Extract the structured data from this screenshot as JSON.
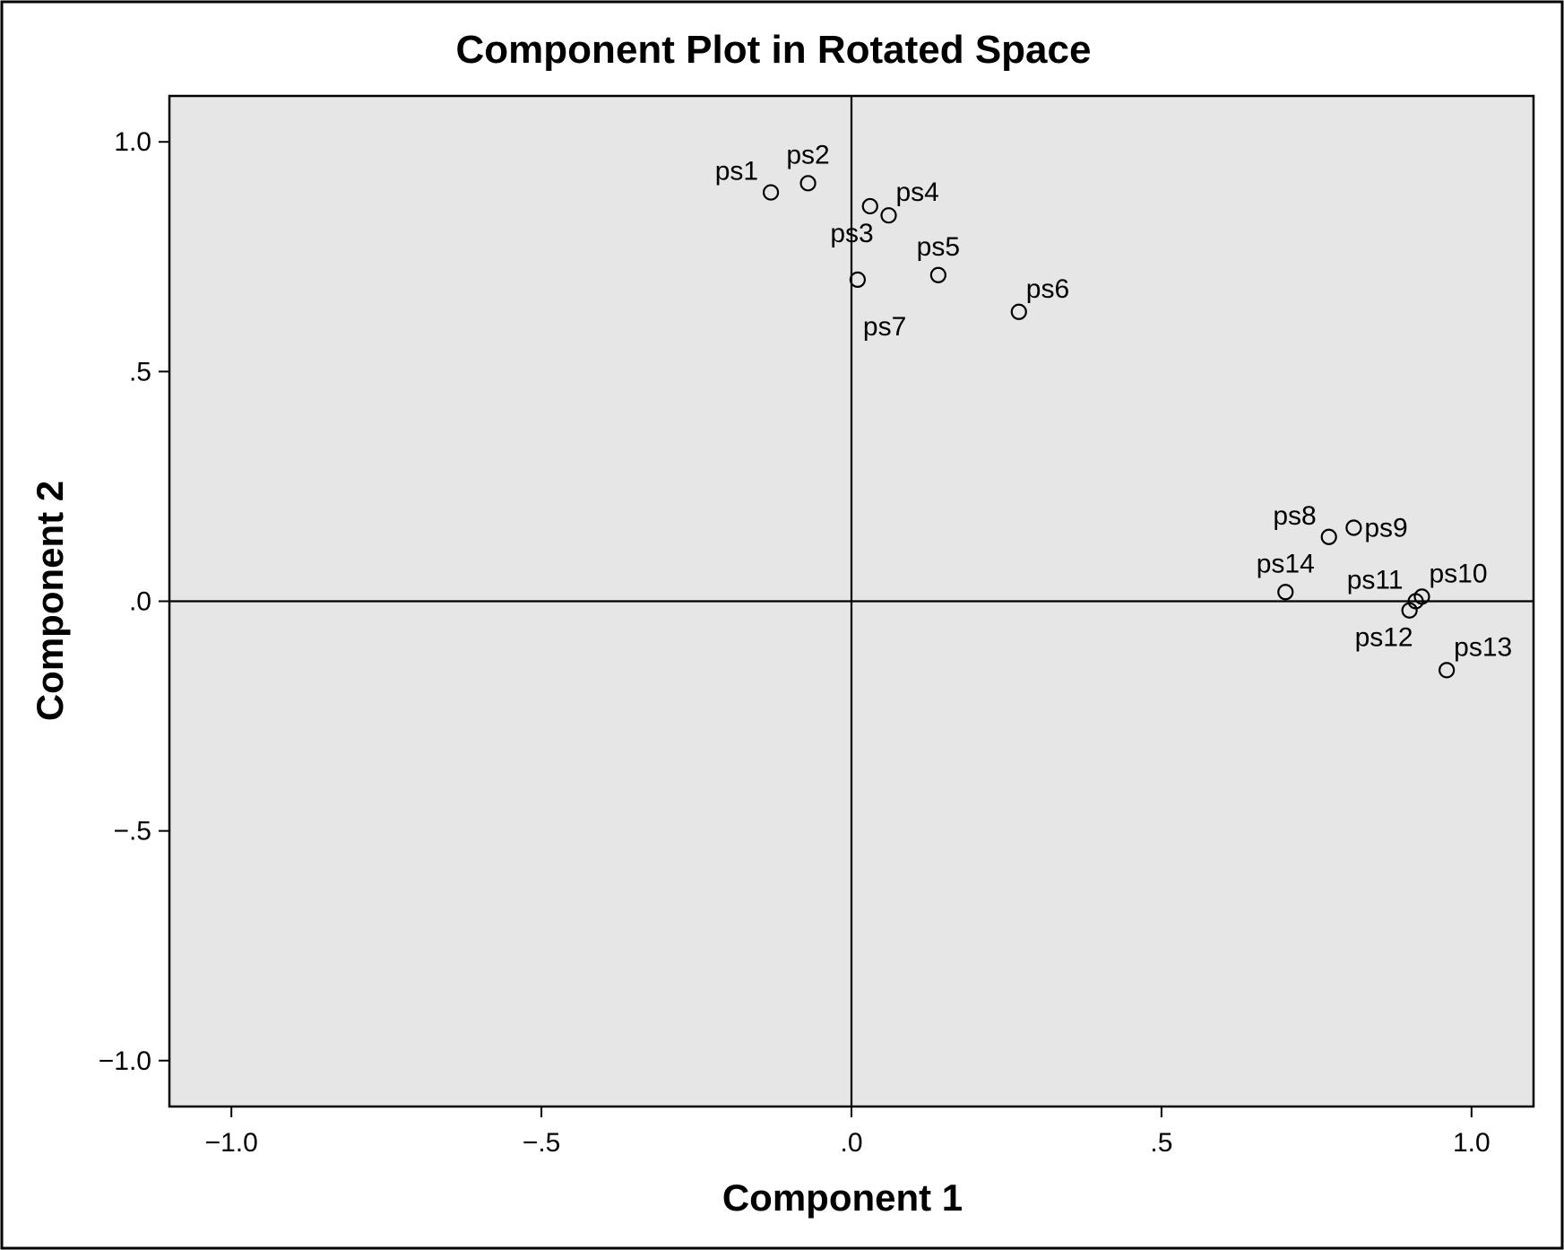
{
  "chart_data": {
    "type": "scatter",
    "title": "Component Plot in Rotated Space",
    "xlabel": "Component 1",
    "ylabel": "Component 2",
    "xlim": [
      -1.1,
      1.1
    ],
    "ylim": [
      -1.1,
      1.1
    ],
    "grid": false,
    "x_ticks": [
      {
        "value": -1.0,
        "label": "−1.0"
      },
      {
        "value": -0.5,
        "label": "−.5"
      },
      {
        "value": 0.0,
        "label": ".0"
      },
      {
        "value": 0.5,
        "label": ".5"
      },
      {
        "value": 1.0,
        "label": "1.0"
      }
    ],
    "y_ticks": [
      {
        "value": 1.0,
        "label": "1.0"
      },
      {
        "value": 0.5,
        "label": ".5"
      },
      {
        "value": 0.0,
        "label": ".0"
      },
      {
        "value": -0.5,
        "label": "−.5"
      },
      {
        "value": -1.0,
        "label": "−1.0"
      }
    ],
    "reference_lines": {
      "x": 0.0,
      "y": 0.0
    },
    "points": [
      {
        "label": "ps1",
        "x": -0.13,
        "y": 0.89,
        "label_pos": "upper-left"
      },
      {
        "label": "ps2",
        "x": -0.07,
        "y": 0.91,
        "label_pos": "above"
      },
      {
        "label": "ps3",
        "x": 0.03,
        "y": 0.86,
        "label_pos": "lower-left"
      },
      {
        "label": "ps4",
        "x": 0.06,
        "y": 0.84,
        "label_pos": "upper-right"
      },
      {
        "label": "ps5",
        "x": 0.14,
        "y": 0.71,
        "label_pos": "above"
      },
      {
        "label": "ps6",
        "x": 0.27,
        "y": 0.63,
        "label_pos": "upper-right"
      },
      {
        "label": "ps7",
        "x": 0.01,
        "y": 0.7,
        "label_pos": "below"
      },
      {
        "label": "ps8",
        "x": 0.77,
        "y": 0.14,
        "label_pos": "upper-left"
      },
      {
        "label": "ps9",
        "x": 0.81,
        "y": 0.16,
        "label_pos": "right"
      },
      {
        "label": "ps10",
        "x": 0.92,
        "y": 0.01,
        "label_pos": "upper-right"
      },
      {
        "label": "ps11",
        "x": 0.91,
        "y": 0.0,
        "label_pos": "upper-left"
      },
      {
        "label": "ps12",
        "x": 0.9,
        "y": -0.02,
        "label_pos": "lower-left"
      },
      {
        "label": "ps13",
        "x": 0.96,
        "y": -0.15,
        "label_pos": "upper-right"
      },
      {
        "label": "ps14",
        "x": 0.7,
        "y": 0.02,
        "label_pos": "above"
      }
    ],
    "colors": {
      "frame_bg": "#ffffff",
      "plot_bg": "#e6e6e6",
      "ink": "#000000"
    }
  }
}
